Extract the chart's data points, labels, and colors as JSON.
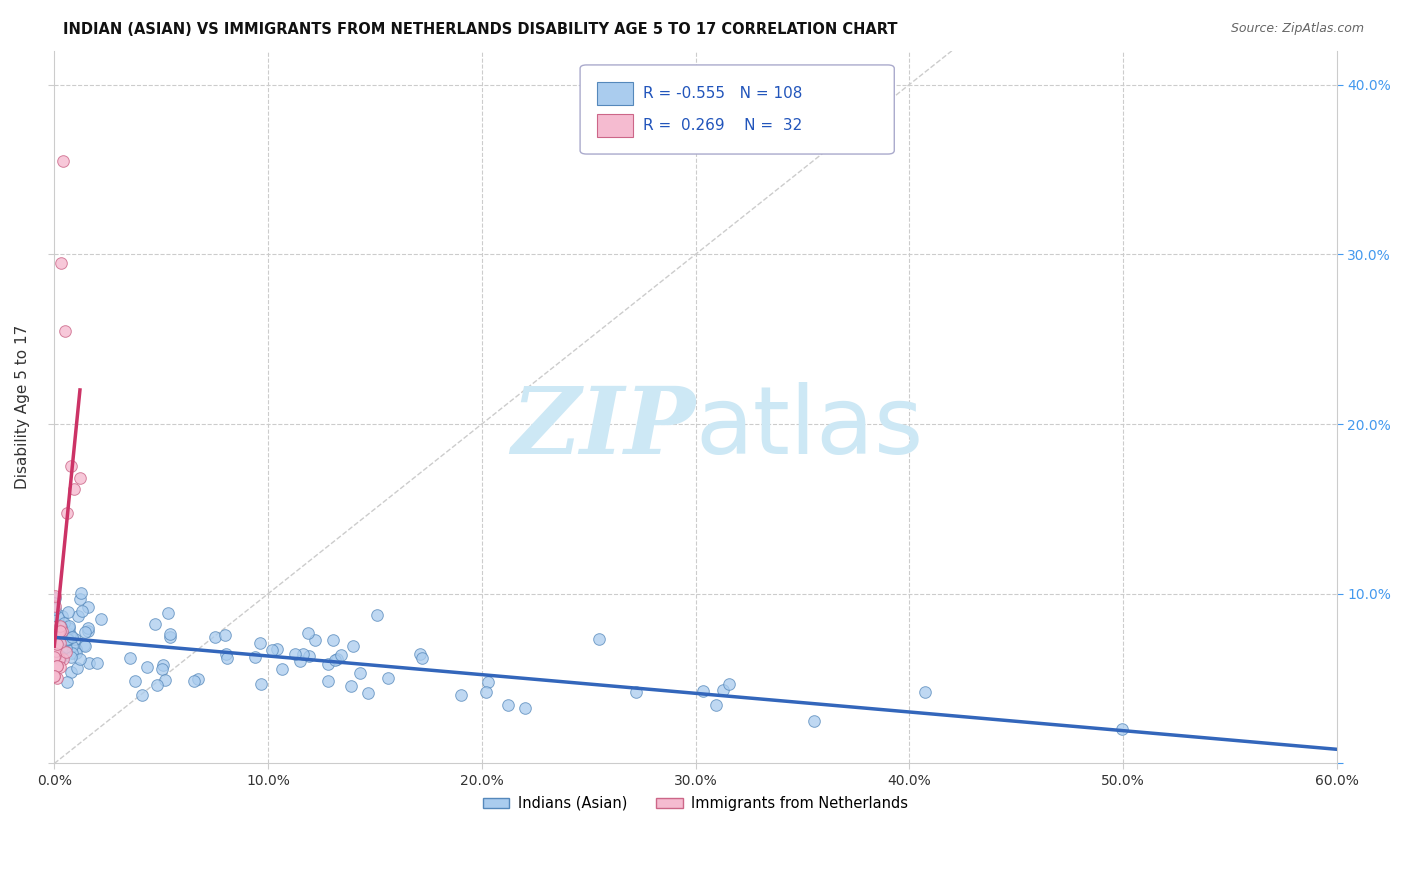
{
  "title": "INDIAN (ASIAN) VS IMMIGRANTS FROM NETHERLANDS DISABILITY AGE 5 TO 17 CORRELATION CHART",
  "source": "Source: ZipAtlas.com",
  "ylabel": "Disability Age 5 to 17",
  "xlim": [
    0.0,
    0.6
  ],
  "ylim": [
    0.0,
    0.42
  ],
  "xtick_values": [
    0.0,
    0.1,
    0.2,
    0.3,
    0.4,
    0.5,
    0.6
  ],
  "ytick_values": [
    0.0,
    0.1,
    0.2,
    0.3,
    0.4
  ],
  "grid_color": "#cccccc",
  "background_color": "#ffffff",
  "watermark_color": "#cde8f5",
  "legend_R1": "-0.555",
  "legend_N1": "108",
  "legend_R2": "0.269",
  "legend_N2": "32",
  "scatter1_color": "#aaccee",
  "scatter1_edge": "#5588bb",
  "scatter2_color": "#f5bbd0",
  "scatter2_edge": "#cc6688",
  "line1_color": "#3366bb",
  "line2_color": "#cc3366",
  "right_tick_color": "#4499ee",
  "seed1": 77,
  "seed2": 55
}
